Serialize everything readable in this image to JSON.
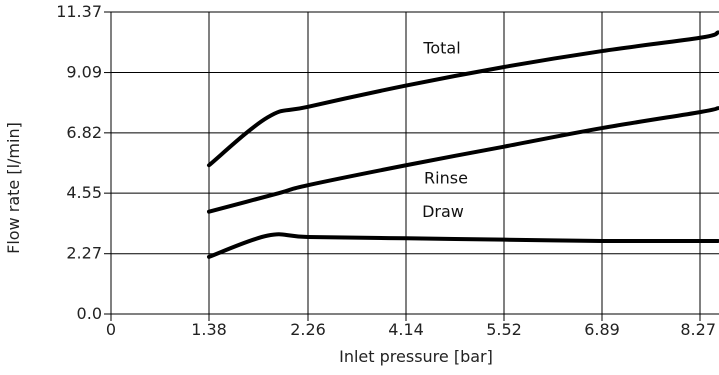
{
  "chart_data": {
    "type": "line",
    "title": "",
    "xlabel": "Inlet pressure [bar]",
    "ylabel": "Flow rate [l/min]",
    "x_ticks": [
      "0",
      "1.38",
      "2.26",
      "4.14",
      "5.52",
      "6.89",
      "8.27"
    ],
    "y_ticks": [
      "0.0",
      "2.27",
      "4.55",
      "6.82",
      "9.09",
      "11.37"
    ],
    "ylim": [
      0,
      11.37
    ],
    "grid": true,
    "series": [
      {
        "name": "Total",
        "points": [
          {
            "x": "1.38",
            "y": 5.6
          },
          {
            "x": "1.9",
            "y": 7.4
          },
          {
            "x": "2.26",
            "y": 7.8
          },
          {
            "x": "4.14",
            "y": 8.6
          },
          {
            "x": "5.52",
            "y": 9.3
          },
          {
            "x": "6.89",
            "y": 9.9
          },
          {
            "x": "8.27",
            "y": 10.4
          },
          {
            "x": "8.6",
            "y": 10.6
          }
        ]
      },
      {
        "name": "Rinse",
        "points": [
          {
            "x": "1.38",
            "y": 3.85
          },
          {
            "x": "2.0",
            "y": 4.55
          },
          {
            "x": "2.26",
            "y": 4.85
          },
          {
            "x": "4.14",
            "y": 5.6
          },
          {
            "x": "5.52",
            "y": 6.3
          },
          {
            "x": "6.89",
            "y": 7.0
          },
          {
            "x": "8.27",
            "y": 7.6
          },
          {
            "x": "8.6",
            "y": 7.75
          }
        ]
      },
      {
        "name": "Draw",
        "points": [
          {
            "x": "1.38",
            "y": 2.15
          },
          {
            "x": "1.9",
            "y": 2.95
          },
          {
            "x": "2.26",
            "y": 2.9
          },
          {
            "x": "4.14",
            "y": 2.85
          },
          {
            "x": "5.52",
            "y": 2.8
          },
          {
            "x": "6.89",
            "y": 2.75
          },
          {
            "x": "8.27",
            "y": 2.75
          },
          {
            "x": "8.6",
            "y": 2.75
          }
        ]
      }
    ]
  }
}
